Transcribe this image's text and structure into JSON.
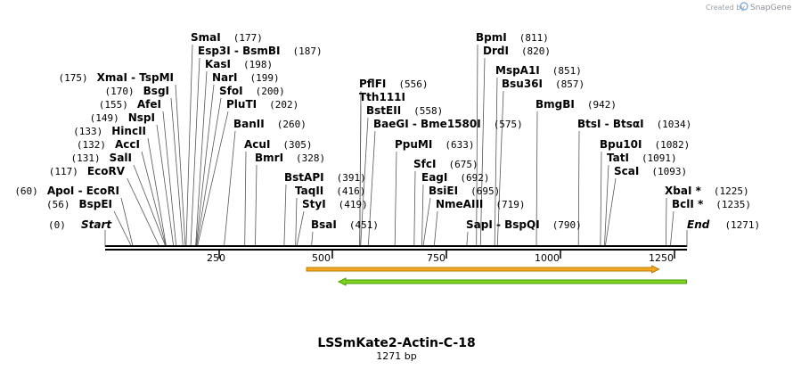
{
  "header": {
    "credit": "Created by",
    "brand": "SnapGene"
  },
  "sequence": {
    "name": "LSSmKate2-Actin-C-18",
    "length_label": "1271 bp",
    "length": 1271
  },
  "ends": {
    "start_label": "Start",
    "start_pos": "(0)",
    "end_label": "End",
    "end_pos": "(1271)"
  },
  "ruler_ticks": [
    "250",
    "500",
    "750",
    "1000",
    "1250"
  ],
  "features": [
    {
      "name": "orange-feature-arrow",
      "start": 440,
      "end": 1210,
      "fill": "#f5a623",
      "stroke": "#b87a00",
      "direction": "forward"
    },
    {
      "name": "green-feature-arrow",
      "start": 510,
      "end": 1270,
      "fill": "#7ed321",
      "stroke": "#4a9a00",
      "direction": "reverse"
    }
  ],
  "left_labels": [
    {
      "text": "XmaI  - TspMI",
      "pos": "(175)",
      "site": 175
    },
    {
      "text": "BsgI",
      "pos": "(170)",
      "site": 170
    },
    {
      "text": "AfeI",
      "pos": "(155)",
      "site": 155
    },
    {
      "text": "NspI",
      "pos": "(149)",
      "site": 149
    },
    {
      "text": "HincII",
      "pos": "(133)",
      "site": 133
    },
    {
      "text": "AccI",
      "pos": "(132)",
      "site": 132
    },
    {
      "text": "SalI",
      "pos": "(131)",
      "site": 131
    },
    {
      "text": "EcoRV",
      "pos": "(117)",
      "site": 117
    },
    {
      "text": "ApoI  - EcoRI",
      "pos": "(60)",
      "site": 60
    },
    {
      "text": "BspEI",
      "pos": "(56)",
      "site": 56
    }
  ],
  "right_labels": [
    {
      "text": "SmaI",
      "pos": "(177)",
      "site": 177
    },
    {
      "text": "Esp3I  - BsmBI",
      "pos": "(187)",
      "site": 187
    },
    {
      "text": "KasI",
      "pos": "(198)",
      "site": 198
    },
    {
      "text": "NarI",
      "pos": "(199)",
      "site": 199
    },
    {
      "text": "SfoI",
      "pos": "(200)",
      "site": 200
    },
    {
      "text": "PluTI",
      "pos": "(202)",
      "site": 202
    },
    {
      "text": "BanII",
      "pos": "(260)",
      "site": 260
    },
    {
      "text": "AcuI",
      "pos": "(305)",
      "site": 305
    },
    {
      "text": "BmrI",
      "pos": "(328)",
      "site": 328
    },
    {
      "text": "BstAPI",
      "pos": "(391)",
      "site": 391
    },
    {
      "text": "TaqII",
      "pos": "(416)",
      "site": 416
    },
    {
      "text": "StyI",
      "pos": "(419)",
      "site": 419
    },
    {
      "text": "BsaI",
      "pos": "(451)",
      "site": 451
    },
    {
      "text": "PflFI",
      "pos": "(556)",
      "site": 556
    },
    {
      "text": "Tth111I",
      "pos": "",
      "site": 556
    },
    {
      "text": "BstEII",
      "pos": "(558)",
      "site": 558
    },
    {
      "text": "BaeGI  - Bme1580I",
      "pos": "(575)",
      "site": 575
    },
    {
      "text": "PpuMI",
      "pos": "(633)",
      "site": 633
    },
    {
      "text": "SfcI",
      "pos": "(675)",
      "site": 675
    },
    {
      "text": "EagI",
      "pos": "(692)",
      "site": 692
    },
    {
      "text": "BsiEI",
      "pos": "(695)",
      "site": 695
    },
    {
      "text": "NmeAIII",
      "pos": "(719)",
      "site": 719
    },
    {
      "text": "BpmI",
      "pos": "(811)",
      "site": 811
    },
    {
      "text": "DrdI",
      "pos": "(820)",
      "site": 820
    },
    {
      "text": "MspA1I",
      "pos": "(851)",
      "site": 851
    },
    {
      "text": "Bsu36I",
      "pos": "(857)",
      "site": 857
    },
    {
      "text": "BmgBI",
      "pos": "(942)",
      "site": 942
    },
    {
      "text": "SapI  - BspQI",
      "pos": "(790)",
      "site": 790
    },
    {
      "text": "BtsI  - BtsαI",
      "pos": "(1034)",
      "site": 1034
    },
    {
      "text": "Bpu10I",
      "pos": "(1082)",
      "site": 1082
    },
    {
      "text": "TatI",
      "pos": "(1091)",
      "site": 1091
    },
    {
      "text": "ScaI",
      "pos": "(1093)",
      "site": 1093
    },
    {
      "text": "XbaI *",
      "pos": "(1225)",
      "site": 1225
    },
    {
      "text": "BclI *",
      "pos": "(1235)",
      "site": 1235
    }
  ]
}
